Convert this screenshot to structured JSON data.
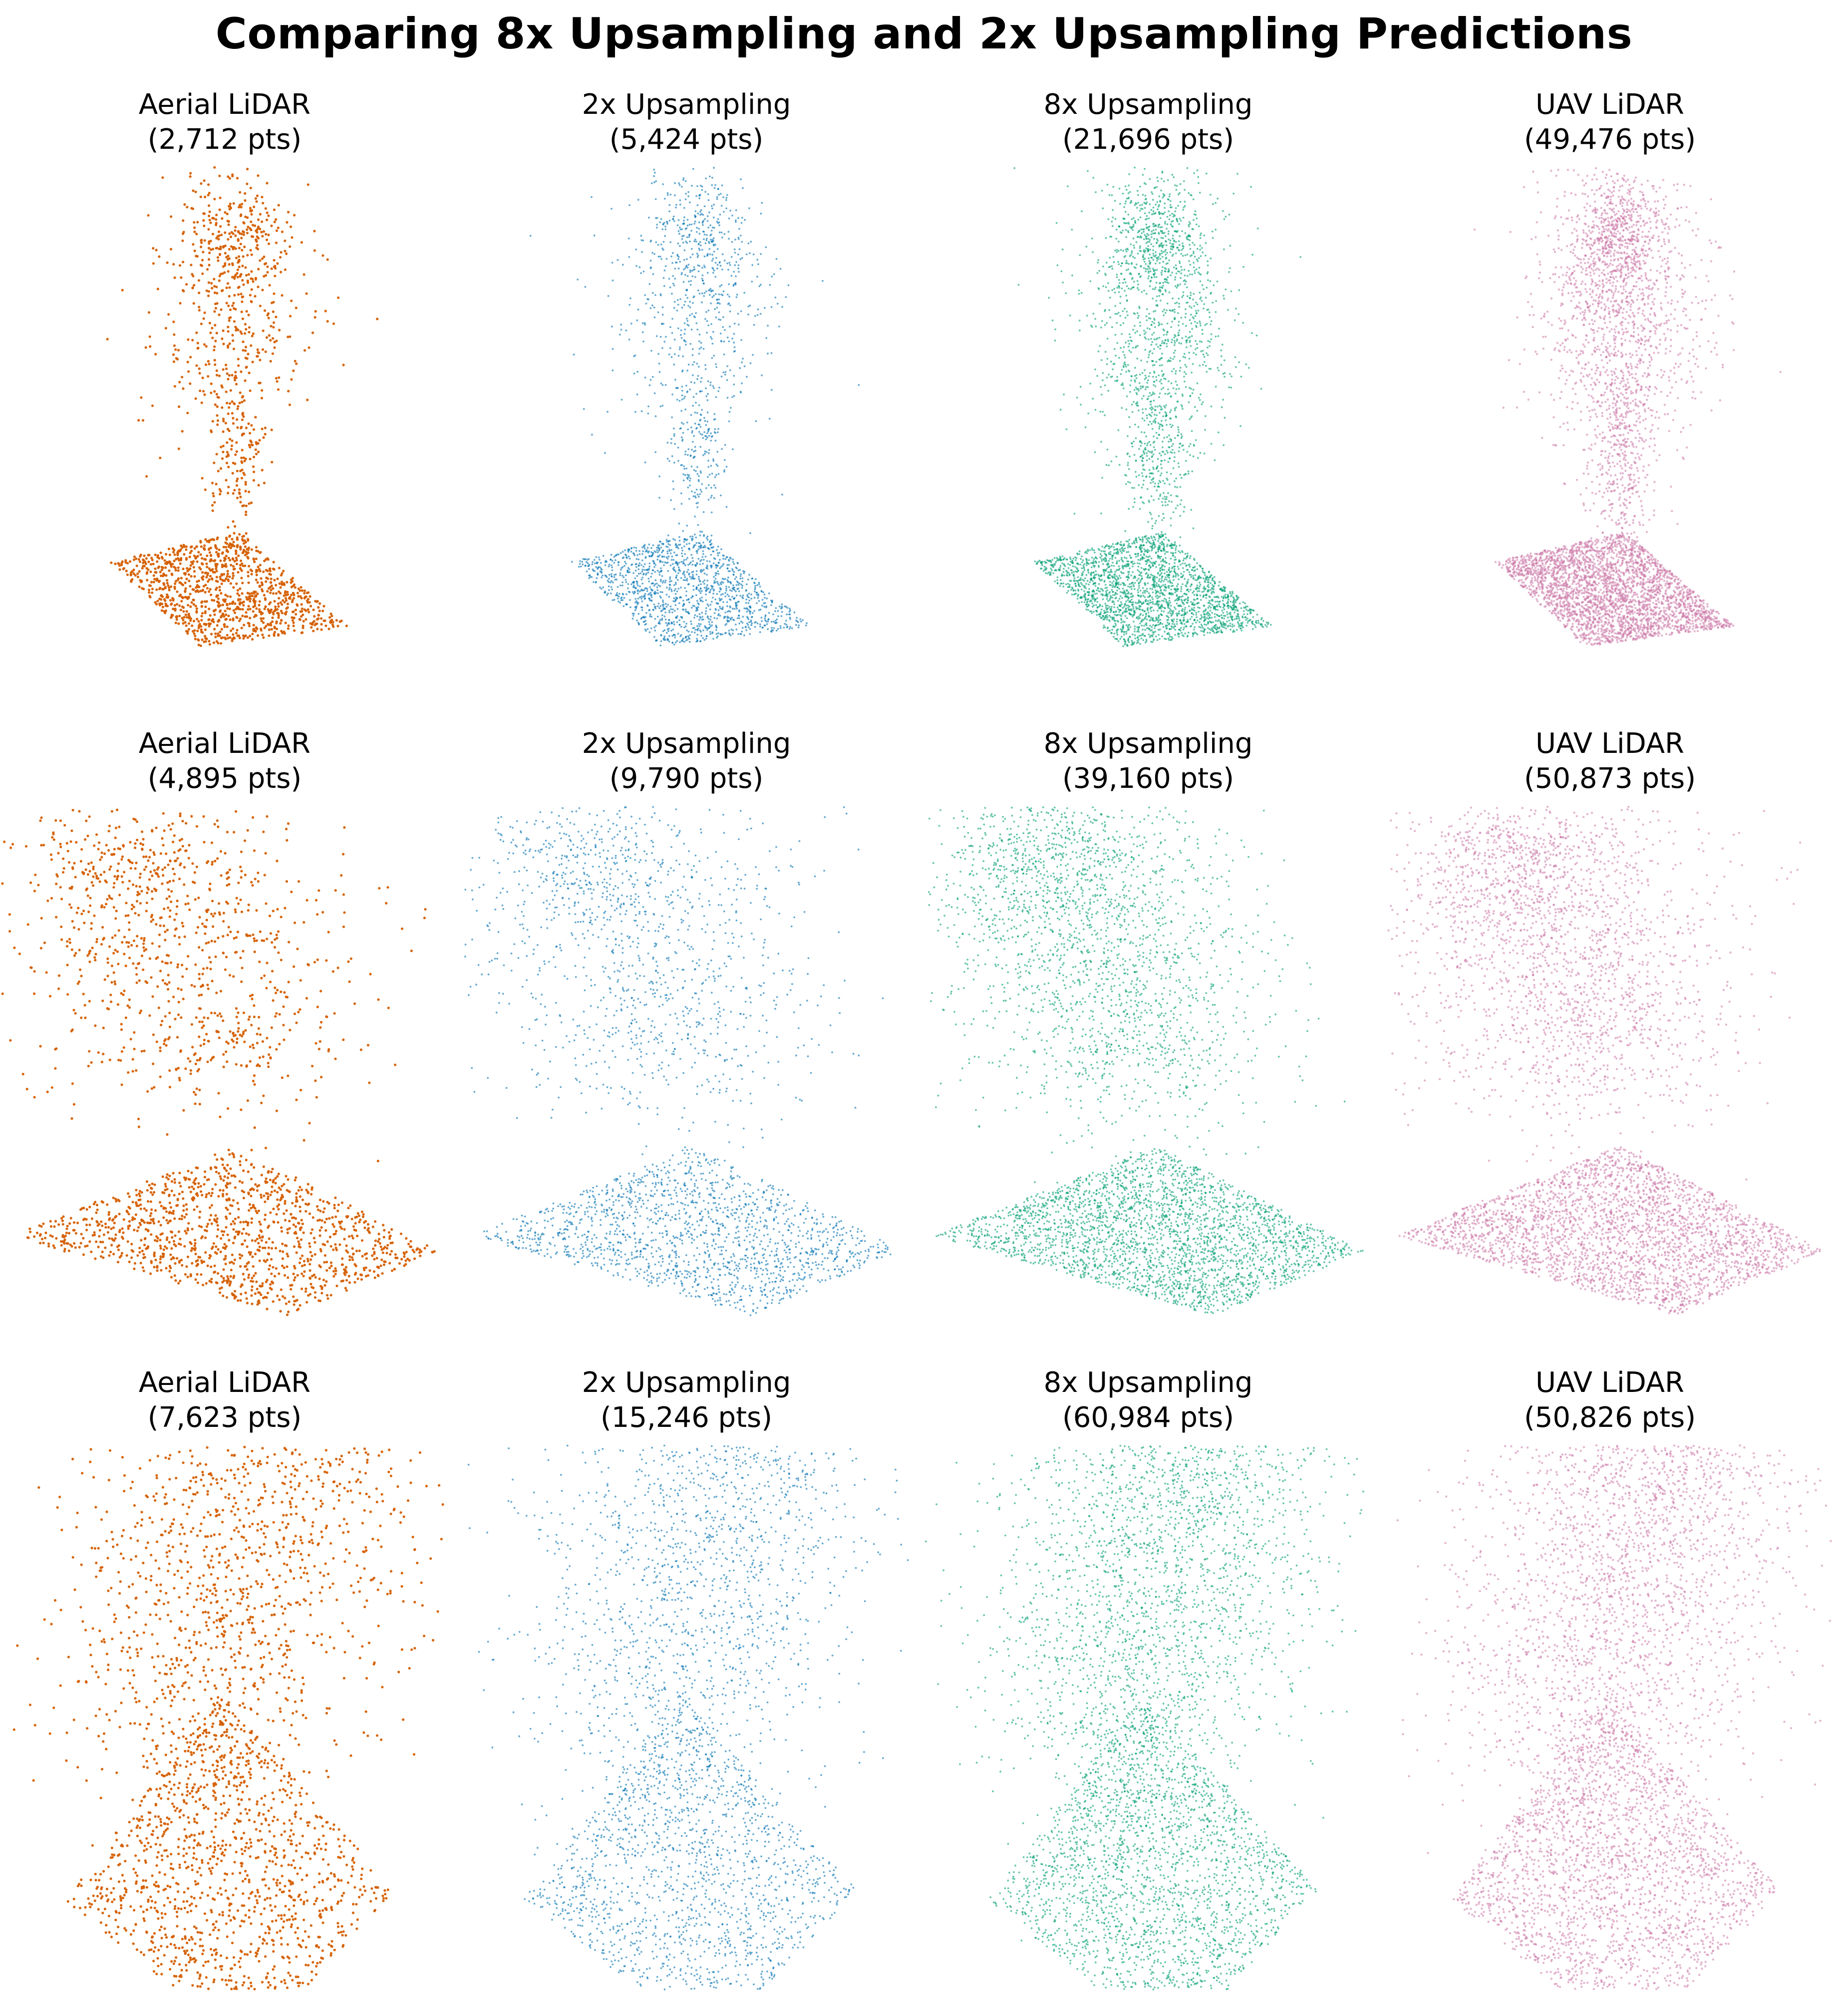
{
  "figure": {
    "title": "Comparing 8x Upsampling and 2x Upsampling Predictions"
  },
  "colors": {
    "aerial": "#d55e00",
    "upsample2x": "#0072b2",
    "upsample8x": "#009e73",
    "uav": "#cc79a7"
  },
  "chart_data": [
    {
      "type": "scatter",
      "row": 1,
      "col": 1,
      "label": "Aerial LiDAR",
      "count": "(2,712 pts)",
      "points": 2712,
      "color_key": "aerial",
      "shape": "tree"
    },
    {
      "type": "scatter",
      "row": 1,
      "col": 2,
      "label": "2x Upsampling",
      "count": "(5,424 pts)",
      "points": 5424,
      "color_key": "upsample2x",
      "shape": "tree"
    },
    {
      "type": "scatter",
      "row": 1,
      "col": 3,
      "label": "8x Upsampling",
      "count": "(21,696 pts)",
      "points": 21696,
      "color_key": "upsample8x",
      "shape": "tree"
    },
    {
      "type": "scatter",
      "row": 1,
      "col": 4,
      "label": "UAV LiDAR",
      "count": "(49,476 pts)",
      "points": 49476,
      "color_key": "uav",
      "shape": "tree"
    },
    {
      "type": "scatter",
      "row": 2,
      "col": 1,
      "label": "Aerial LiDAR",
      "count": "(4,895 pts)",
      "points": 4895,
      "color_key": "aerial",
      "shape": "canopy"
    },
    {
      "type": "scatter",
      "row": 2,
      "col": 2,
      "label": "2x Upsampling",
      "count": "(9,790 pts)",
      "points": 9790,
      "color_key": "upsample2x",
      "shape": "canopy"
    },
    {
      "type": "scatter",
      "row": 2,
      "col": 3,
      "label": "8x Upsampling",
      "count": "(39,160 pts)",
      "points": 39160,
      "color_key": "upsample8x",
      "shape": "canopy"
    },
    {
      "type": "scatter",
      "row": 2,
      "col": 4,
      "label": "UAV LiDAR",
      "count": "(50,873 pts)",
      "points": 50873,
      "color_key": "uav",
      "shape": "canopy"
    },
    {
      "type": "scatter",
      "row": 3,
      "col": 1,
      "label": "Aerial LiDAR",
      "count": "(7,623 pts)",
      "points": 7623,
      "color_key": "aerial",
      "shape": "forest"
    },
    {
      "type": "scatter",
      "row": 3,
      "col": 2,
      "label": "2x Upsampling",
      "count": "(15,246 pts)",
      "points": 15246,
      "color_key": "upsample2x",
      "shape": "forest"
    },
    {
      "type": "scatter",
      "row": 3,
      "col": 3,
      "label": "8x Upsampling",
      "count": "(60,984 pts)",
      "points": 60984,
      "color_key": "upsample8x",
      "shape": "forest"
    },
    {
      "type": "scatter",
      "row": 3,
      "col": 4,
      "label": "UAV LiDAR",
      "count": "(50,826 pts)",
      "points": 50826,
      "color_key": "uav",
      "shape": "forest"
    }
  ]
}
